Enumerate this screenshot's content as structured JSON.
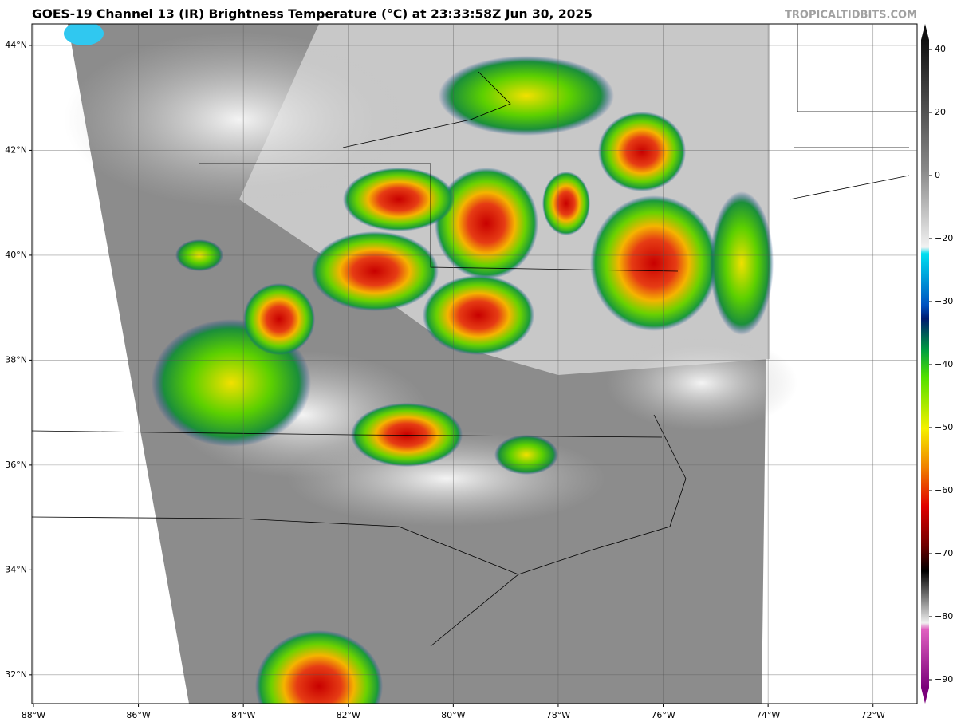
{
  "map": {
    "title": "GOES-19 Channel 13 (IR) Brightness Temperature (°C) at 23:33:58Z Jun 30, 2025",
    "credit": "TROPICALTIDBITS.COM",
    "lon_lim": [
      -88.03,
      -71.16
    ],
    "lat_lim": [
      31.45,
      44.41
    ],
    "lon_ticks": [
      {
        "value": -88,
        "label": "88°W"
      },
      {
        "value": -86,
        "label": "86°W"
      },
      {
        "value": -84,
        "label": "84°W"
      },
      {
        "value": -82,
        "label": "82°W"
      },
      {
        "value": -80,
        "label": "80°W"
      },
      {
        "value": -78,
        "label": "78°W"
      },
      {
        "value": -76,
        "label": "76°W"
      },
      {
        "value": -74,
        "label": "74°W"
      },
      {
        "value": -72,
        "label": "72°W"
      }
    ],
    "lat_ticks": [
      {
        "value": 44,
        "label": "44°N"
      },
      {
        "value": 42,
        "label": "42°N"
      },
      {
        "value": 40,
        "label": "40°N"
      },
      {
        "value": 38,
        "label": "38°N"
      },
      {
        "value": 36,
        "label": "36°N"
      },
      {
        "value": 34,
        "label": "34°N"
      },
      {
        "value": 32,
        "label": "32°N"
      }
    ],
    "colorbar_ticks": [
      40,
      20,
      0,
      {
        "value": -20,
        "label": "−20"
      },
      {
        "value": -30,
        "label": "−30"
      },
      {
        "value": -40,
        "label": "−40"
      },
      {
        "value": -50,
        "label": "−50"
      },
      {
        "value": -60,
        "label": "−60"
      },
      {
        "value": -70,
        "label": "−70"
      },
      {
        "value": -80,
        "label": "−80"
      },
      {
        "value": -90,
        "label": "−90"
      }
    ],
    "grid": true
  }
}
